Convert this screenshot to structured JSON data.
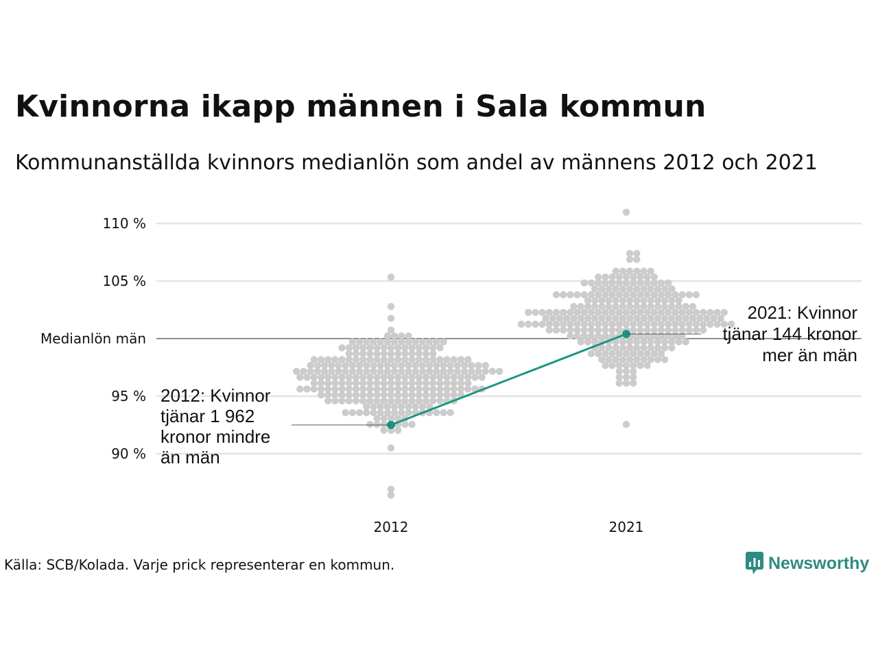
{
  "title": "Kvinnorna ikapp männen i Sala kommun",
  "subtitle": "Kommunanställda kvinnors medianlön som andel av männens 2012 och 2021",
  "source": "Källa: SCB/Kolada. Varje prick representerar en kommun.",
  "brand": {
    "name": "Newsworthy",
    "color": "#2e8b7f",
    "icon": "newsworthy-chart-bubble-icon"
  },
  "chart_data": {
    "type": "scatter",
    "categories": [
      "2012",
      "2021"
    ],
    "yticks": [
      {
        "value": 90,
        "label": "90 %"
      },
      {
        "value": 95,
        "label": "95 %"
      },
      {
        "value": 100,
        "label": "Medianlön män"
      },
      {
        "value": 105,
        "label": "105 %"
      },
      {
        "value": 110,
        "label": "110 %"
      }
    ],
    "ylim": [
      86.5,
      111.5
    ],
    "grid": true,
    "colors": {
      "dots": "#cccccc",
      "highlight": "#1a9582",
      "grid": "#e3e3e3",
      "reference": "#222222"
    },
    "swarm": [
      {
        "category": "2012",
        "median": 96.5,
        "min": 86.6,
        "max": 105.1,
        "spread": 5.5,
        "count": 290
      },
      {
        "category": "2021",
        "median": 101.7,
        "min": 92.6,
        "max": 111.2,
        "spread": 5.5,
        "count": 290
      }
    ],
    "highlight": {
      "name": "Sala",
      "points": [
        {
          "category": "2012",
          "value": 92.5
        },
        {
          "category": "2021",
          "value": 100.4
        }
      ]
    },
    "annotations": [
      {
        "category": "2012",
        "value": 92.5,
        "lines": [
          "2012: Kvinnor",
          "tjänar 1 962",
          "kronor mindre",
          "än män"
        ]
      },
      {
        "category": "2021",
        "value": 100.4,
        "lines": [
          "2021: Kvinnor",
          "tjänar 144 kronor",
          "mer än män"
        ]
      }
    ]
  }
}
